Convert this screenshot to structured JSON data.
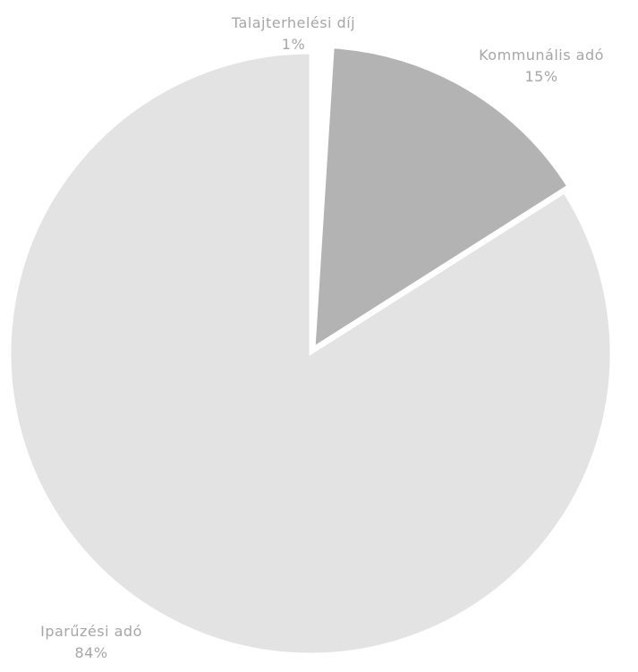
{
  "chart_data": {
    "type": "pie",
    "title": "",
    "slices": [
      {
        "label": "Talajterhelési díj",
        "value": 1,
        "value_label": "1%",
        "color": "#ffffff"
      },
      {
        "label": "Kommunális adó",
        "value": 15,
        "value_label": "15%",
        "color": "#b3b3b3"
      },
      {
        "label": "Iparűzési adó",
        "value": 84,
        "value_label": "84%",
        "color": "#e3e3e3"
      }
    ],
    "legend": "none",
    "data_labels": "outside"
  }
}
